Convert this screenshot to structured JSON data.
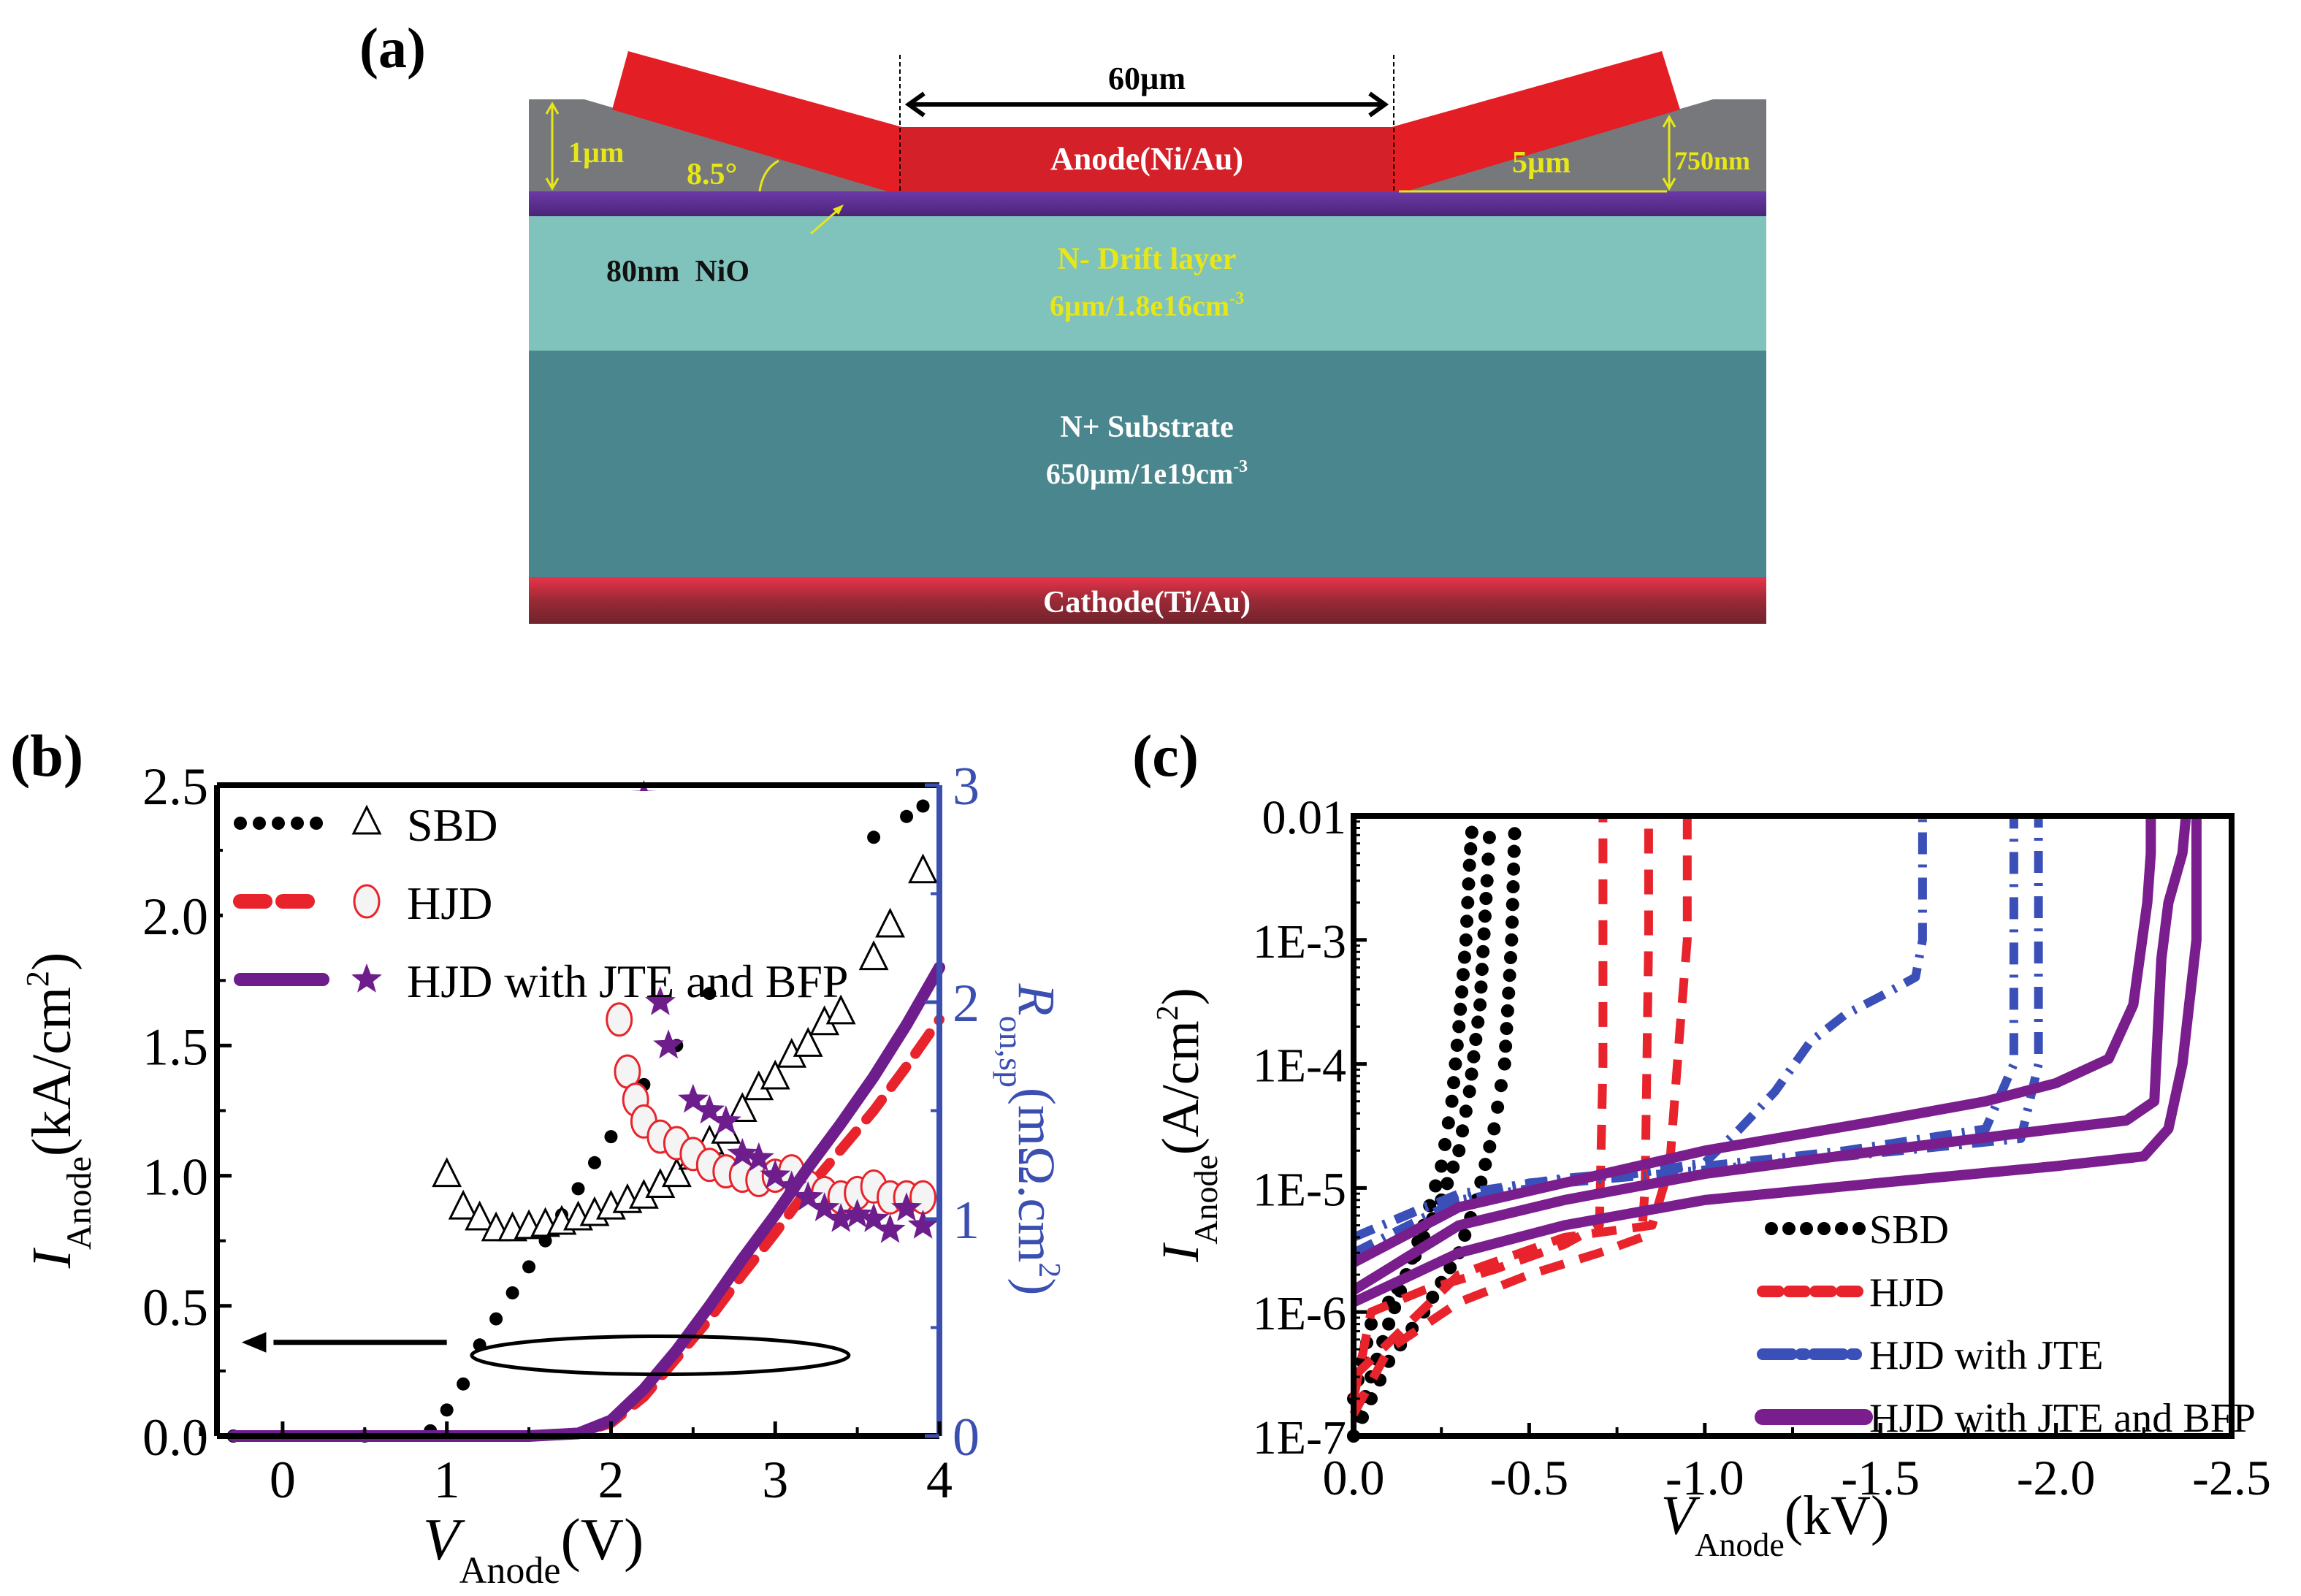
{
  "panel_labels": {
    "a": "(a)",
    "b": "(b)",
    "c": "(c)"
  },
  "diagram": {
    "width_label": "60µm",
    "anode_label": "Anode(Ni/Au)",
    "depth_label": "1µm",
    "angle_label": "8.5°",
    "jte_length_label": "5µm",
    "bfp_height_label": "750nm",
    "nio_label": "80nm  NiO",
    "drift_label_1": "N- Drift layer",
    "drift_label_2": "6µm/1.8e16cm",
    "drift_label_2_sup": "-3",
    "substrate_label_1": "N+ Substrate",
    "substrate_label_2": "650µm/1e19cm",
    "substrate_label_2_sup": "-3",
    "cathode_label": "Cathode(Ti/Au)",
    "colors": {
      "anode": "#e31e24",
      "anode_center": "#d42029",
      "dielectric": "#76787c",
      "nio": "#6a35a0",
      "drift": "#80c2bc",
      "substrate": "#4a868d",
      "cathode_top": "#e8334a",
      "cathode_bottom": "#7a2430",
      "annotation": "#e6e619"
    }
  },
  "chart_data": [
    {
      "id": "b",
      "type": "line",
      "title": "",
      "xlabel": "V",
      "xlabel_sub": "Anode",
      "xlabel_unit": "(V)",
      "ylabel": "I",
      "ylabel_sub": "Anode",
      "ylabel_unit": "(kA/cm",
      "ylabel_sup": "2",
      "ylabel_close": ")",
      "y2label": "R",
      "y2label_sub": "on,sp",
      "y2label_unit": "(mΩ.cm",
      "y2label_sup": "2",
      "y2label_close": ")",
      "xlim": [
        -0.4,
        4
      ],
      "ylim": [
        0,
        2.5
      ],
      "y2lim": [
        0,
        3
      ],
      "xticks": [
        "0",
        "1",
        "2",
        "3",
        "4"
      ],
      "xtick_values": [
        0,
        1,
        2,
        3,
        4
      ],
      "yticks": [
        "0.0",
        "0.5",
        "1.0",
        "1.5",
        "2.0",
        "2.5"
      ],
      "ytick_values": [
        0,
        0.5,
        1.0,
        1.5,
        2.0,
        2.5
      ],
      "y2ticks": [
        "0",
        "1",
        "2",
        "3"
      ],
      "y2tick_values": [
        0,
        1,
        2,
        3
      ],
      "y2_color": "#3a4fb0",
      "legend_position": "top-left",
      "annotation": "ellipse with left arrow indicating current curves use left axis",
      "series": [
        {
          "name": "SBD",
          "axis": "left",
          "style": "dotted",
          "color": "#000000",
          "x": [
            -0.3,
            0.5,
            0.9,
            1.0,
            1.1,
            1.2,
            1.3,
            1.4,
            1.5,
            1.6,
            1.7,
            1.8,
            1.9,
            2.0,
            2.2,
            2.4,
            2.6,
            2.8,
            3.0,
            3.2,
            3.4,
            3.6,
            3.8,
            3.9
          ],
          "y": [
            0,
            0,
            0.02,
            0.1,
            0.2,
            0.35,
            0.45,
            0.55,
            0.65,
            0.75,
            0.85,
            0.95,
            1.05,
            1.15,
            1.35,
            1.5,
            1.7,
            1.85,
            2.0,
            2.1,
            2.2,
            2.3,
            2.38,
            2.42
          ]
        },
        {
          "name": "SBD",
          "axis": "right",
          "style": "triangle",
          "color": "#000000",
          "x": [
            1.0,
            1.1,
            1.2,
            1.3,
            1.4,
            1.5,
            1.6,
            1.7,
            1.8,
            1.9,
            2.0,
            2.1,
            2.2,
            2.3,
            2.4,
            2.5,
            2.6,
            2.7,
            2.8,
            2.9,
            3.0,
            3.1,
            3.2,
            3.3,
            3.4,
            3.6,
            3.7,
            3.9
          ],
          "y": [
            1.2,
            1.05,
            1.0,
            0.95,
            0.95,
            0.96,
            0.97,
            0.98,
            1.0,
            1.02,
            1.05,
            1.08,
            1.1,
            1.15,
            1.2,
            1.28,
            1.35,
            1.4,
            1.5,
            1.6,
            1.65,
            1.75,
            1.8,
            1.9,
            1.95,
            2.2,
            2.35,
            2.6
          ]
        },
        {
          "name": "HJD",
          "axis": "left",
          "style": "dashed",
          "color": "#e8232b",
          "x": [
            -0.3,
            1.0,
            1.5,
            1.8,
            2.0,
            2.2,
            2.4,
            2.6,
            2.8,
            3.0,
            3.2,
            3.4,
            3.6,
            3.8,
            4.0
          ],
          "y": [
            0,
            0,
            0,
            0.01,
            0.05,
            0.15,
            0.3,
            0.45,
            0.62,
            0.78,
            0.95,
            1.1,
            1.25,
            1.42,
            1.6
          ]
        },
        {
          "name": "HJD",
          "axis": "right",
          "style": "circle",
          "color": "#e8232b",
          "x": [
            1.95,
            2.05,
            2.1,
            2.15,
            2.2,
            2.3,
            2.4,
            2.5,
            2.6,
            2.7,
            2.8,
            2.9,
            3.0,
            3.1,
            3.2,
            3.3,
            3.4,
            3.5,
            3.6,
            3.7,
            3.8,
            3.9
          ],
          "y": [
            2.45,
            1.92,
            1.68,
            1.55,
            1.45,
            1.38,
            1.35,
            1.3,
            1.25,
            1.22,
            1.2,
            1.18,
            1.2,
            1.22,
            1.15,
            1.12,
            1.1,
            1.12,
            1.15,
            1.1,
            1.1,
            1.1
          ]
        },
        {
          "name": "HJD with  JTE and BFP",
          "axis": "left",
          "style": "solid",
          "color": "#6e1e8c",
          "x": [
            -0.3,
            1.0,
            1.5,
            1.8,
            2.0,
            2.2,
            2.4,
            2.6,
            2.8,
            3.0,
            3.2,
            3.4,
            3.6,
            3.8,
            4.0
          ],
          "y": [
            0,
            0,
            0,
            0.01,
            0.06,
            0.18,
            0.33,
            0.5,
            0.68,
            0.85,
            1.03,
            1.2,
            1.38,
            1.58,
            1.8
          ]
        },
        {
          "name": "HJD with  JTE and BFP",
          "axis": "right",
          "style": "star",
          "color": "#6e1e8c",
          "x": [
            2.2,
            2.3,
            2.35,
            2.5,
            2.6,
            2.7,
            2.8,
            2.9,
            3.0,
            3.1,
            3.2,
            3.3,
            3.4,
            3.5,
            3.6,
            3.7,
            3.8,
            3.9
          ],
          "y": [
            2.95,
            2.0,
            1.8,
            1.55,
            1.5,
            1.45,
            1.3,
            1.28,
            1.2,
            1.15,
            1.1,
            1.05,
            1.0,
            1.02,
            1.0,
            0.95,
            1.05,
            0.97
          ]
        }
      ]
    },
    {
      "id": "c",
      "type": "line",
      "title": "",
      "xlabel": "V",
      "xlabel_sub": "Anode",
      "xlabel_unit": "(kV)",
      "ylabel": "I",
      "ylabel_sub": "Anode",
      "ylabel_unit": "(A/cm",
      "ylabel_sup": "2",
      "ylabel_close": ")",
      "yscale": "log",
      "xlim": [
        0,
        -2.5
      ],
      "ylim": [
        1e-07,
        0.01
      ],
      "xticks": [
        "0.0",
        "-0.5",
        "-1.0",
        "-1.5",
        "-2.0",
        "-2.5"
      ],
      "xtick_values": [
        0,
        -0.5,
        -1.0,
        -1.5,
        -2.0,
        -2.5
      ],
      "yticks": [
        "1E-7",
        "1E-6",
        "1E-5",
        "1E-4",
        "1E-3",
        "0.01"
      ],
      "ytick_values": [
        1e-07,
        1e-06,
        1e-05,
        0.0001,
        0.001,
        0.01
      ],
      "legend_position": "bottom-right",
      "series": [
        {
          "name": "SBD",
          "style": "dotted",
          "color": "#000000",
          "curves": [
            {
              "x": [
                0,
                -0.05,
                -0.1,
                -0.15,
                -0.2,
                -0.25,
                -0.28,
                -0.3,
                -0.32,
                -0.33,
                -0.34
              ],
              "y": [
                1e-07,
                3e-07,
                8e-07,
                2e-06,
                5e-06,
                1.5e-05,
                5e-05,
                0.0002,
                0.001,
                0.004,
                0.01
              ]
            },
            {
              "x": [
                0,
                -0.05,
                -0.1,
                -0.15,
                -0.2,
                -0.25,
                -0.3,
                -0.33,
                -0.36,
                -0.38,
                -0.39
              ],
              "y": [
                2e-07,
                8e-07,
                1.2e-06,
                2e-06,
                4e-06,
                8e-06,
                2e-05,
                6e-05,
                0.0003,
                0.003,
                0.01
              ]
            },
            {
              "x": [
                0,
                -0.1,
                -0.2,
                -0.3,
                -0.35,
                -0.4,
                -0.43,
                -0.45,
                -0.46
              ],
              "y": [
                1e-07,
                4e-07,
                1e-06,
                3e-06,
                8e-06,
                3e-05,
                0.0001,
                0.001,
                0.01
              ]
            }
          ]
        },
        {
          "name": "HJD",
          "style": "dashed",
          "color": "#e8232b",
          "curves": [
            {
              "x": [
                0,
                -0.05,
                -0.2,
                -0.4,
                -0.6,
                -0.7,
                -0.71,
                -0.71
              ],
              "y": [
                2e-07,
                1e-06,
                1.5e-06,
                2.2e-06,
                3.5e-06,
                5e-06,
                0.0001,
                0.01
              ]
            },
            {
              "x": [
                0,
                -0.1,
                -0.3,
                -0.5,
                -0.7,
                -0.82,
                -0.83,
                -0.84,
                -0.84
              ],
              "y": [
                1.5e-07,
                5e-07,
                1.2e-06,
                2e-06,
                3e-06,
                4e-06,
                1e-05,
                0.001,
                0.01
              ]
            },
            {
              "x": [
                0,
                -0.3,
                -0.6,
                -0.85,
                -0.9,
                -0.93,
                -0.95,
                -0.95
              ],
              "y": [
                3e-07,
                2e-06,
                4e-06,
                5e-06,
                1.5e-05,
                0.0002,
                0.001,
                0.01
              ]
            }
          ]
        },
        {
          "name": "HJD with JTE",
          "style": "dashdot",
          "color": "#3a4fb8",
          "curves": [
            {
              "x": [
                0,
                -0.2,
                -0.5,
                -0.8,
                -1.0,
                -1.1,
                -1.2,
                -1.3,
                -1.4,
                -1.5,
                -1.6,
                -1.62,
                -1.62
              ],
              "y": [
                4e-06,
                7e-06,
                1.1e-05,
                1.3e-05,
                1.6e-05,
                3e-05,
                6e-05,
                0.00015,
                0.00025,
                0.00035,
                0.0005,
                0.001,
                0.01
              ]
            },
            {
              "x": [
                0,
                -0.3,
                -0.6,
                -1.0,
                -1.4,
                -1.8,
                -1.88,
                -1.88
              ],
              "y": [
                4e-06,
                9e-06,
                1.2e-05,
                1.5e-05,
                2e-05,
                3e-05,
                0.0001,
                0.01
              ]
            },
            {
              "x": [
                0,
                -0.3,
                -0.6,
                -1.0,
                -1.4,
                -1.9,
                -1.95,
                -1.95
              ],
              "y": [
                3e-06,
                8e-06,
                1.1e-05,
                1.4e-05,
                1.8e-05,
                2.5e-05,
                0.0001,
                0.01
              ]
            }
          ]
        },
        {
          "name": "HJD with JTE and BFP",
          "style": "solid",
          "color": "#7a1e8e",
          "curves": [
            {
              "x": [
                0,
                -0.3,
                -0.6,
                -1.0,
                -1.5,
                -1.8,
                -2.0,
                -2.15,
                -2.22,
                -2.26,
                -2.27,
                -2.27
              ],
              "y": [
                2.5e-06,
                7e-06,
                1.1e-05,
                2e-05,
                3.5e-05,
                5e-05,
                7e-05,
                0.00011,
                0.0003,
                0.002,
                0.005,
                0.01
              ]
            },
            {
              "x": [
                0,
                -0.3,
                -0.6,
                -1.0,
                -1.5,
                -2.0,
                -2.2,
                -2.28,
                -2.3,
                -2.32,
                -2.36,
                -2.37
              ],
              "y": [
                1.5e-06,
                5e-06,
                8e-06,
                1.3e-05,
                2e-05,
                3e-05,
                3.5e-05,
                5e-05,
                0.0007,
                0.002,
                0.005,
                0.01
              ]
            },
            {
              "x": [
                0,
                -0.3,
                -0.6,
                -1.0,
                -1.5,
                -2.0,
                -2.25,
                -2.32,
                -2.36,
                -2.4,
                -2.4
              ],
              "y": [
                1.2e-06,
                3e-06,
                5e-06,
                8e-06,
                1.1e-05,
                1.5e-05,
                1.8e-05,
                3e-05,
                0.0001,
                0.001,
                0.01
              ]
            }
          ]
        }
      ]
    }
  ]
}
